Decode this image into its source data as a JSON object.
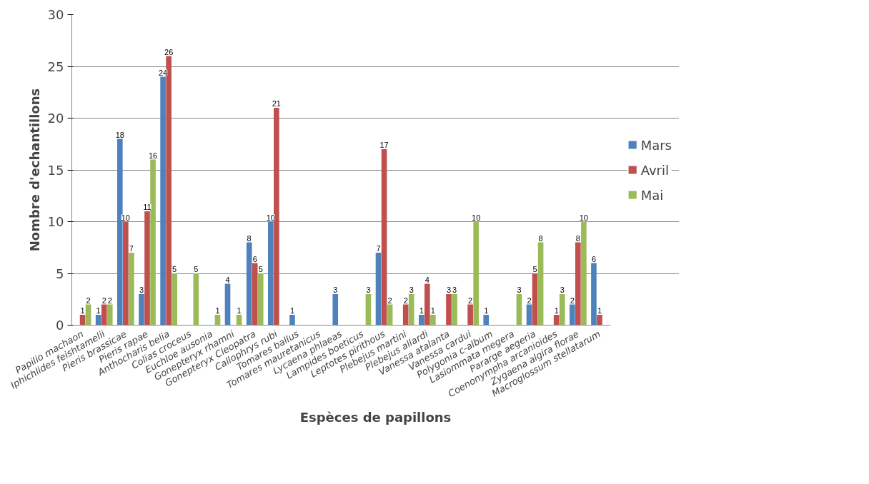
{
  "chart_data": {
    "type": "bar",
    "xlabel": "Espèces de papillons",
    "ylabel": "Nombre d'echantillons",
    "categories": [
      "Papilio machaon",
      "Iphichlides feishtamelii",
      "Pieris brassicae",
      "Pieris rapae",
      "Anthocharis belia",
      "Colias croceus",
      "Euchloe ausonia",
      "Gonepteryx rhamni",
      "Gonepteryx Cleopatra",
      "Callophrys rubi",
      "Tomares ballus",
      "Tomares mauretanicus",
      "Lycaena phlaeas",
      "Lampides boeticus",
      "Leptotes pirithous",
      "Plebejus martini",
      "Plebejus allardi",
      "Vanessa atalanta",
      "Vanessa cardui",
      "Polygonia c-album",
      "Lasiommata megera",
      "Pararge aegeria",
      "Coenonympha arcanioides",
      "Zygaena algira florae",
      "Macroglossum stellatarum"
    ],
    "series": [
      {
        "name": "Mars",
        "color": "#4f81bd",
        "values": [
          null,
          1,
          18,
          3,
          24,
          null,
          null,
          4,
          8,
          10,
          1,
          null,
          3,
          null,
          7,
          null,
          1,
          null,
          null,
          1,
          null,
          2,
          null,
          2,
          6
        ]
      },
      {
        "name": "Avril",
        "color": "#c0504d",
        "values": [
          1,
          2,
          10,
          11,
          26,
          null,
          null,
          null,
          6,
          21,
          null,
          null,
          null,
          null,
          17,
          2,
          4,
          3,
          2,
          null,
          null,
          5,
          1,
          8,
          1
        ]
      },
      {
        "name": "Mai",
        "color": "#9bbb59",
        "values": [
          2,
          2,
          7,
          16,
          5,
          5,
          1,
          1,
          5,
          null,
          null,
          null,
          null,
          3,
          2,
          3,
          1,
          3,
          10,
          null,
          3,
          8,
          3,
          10,
          null
        ]
      }
    ],
    "ylim": [
      0,
      30
    ],
    "yticks": [
      0,
      5,
      10,
      15,
      20,
      25,
      30
    ],
    "grid": "y",
    "legend": "right",
    "data_labels": true
  }
}
